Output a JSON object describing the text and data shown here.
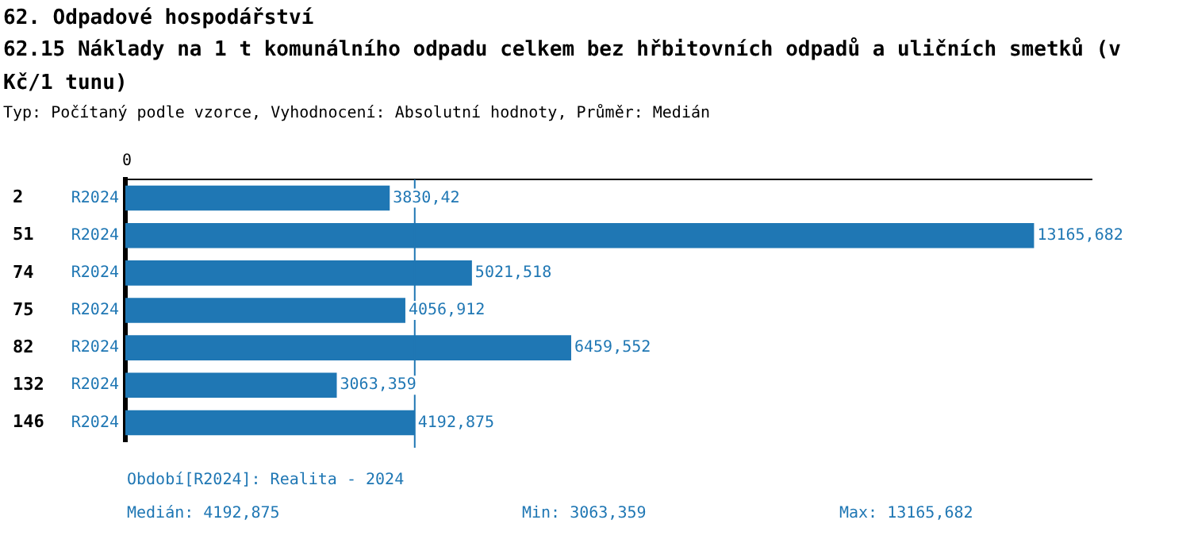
{
  "chart_data": {
    "type": "bar",
    "orientation": "horizontal",
    "title": "62. Odpadové hospodářství",
    "subtitle": "62.15 Náklady na 1 t komunálního odpadu celkem bez hřbitovních odpadů a uličních smetků (v Kč/1 tunu)",
    "annotations": [
      "Typ: Počítaný podle vzorce, Vyhodnocení: Absolutní hodnoty, Průměr: Medián",
      "0",
      "Období[R2024]: Realita - 2024",
      "Medián: 4192,875",
      "Min: 3063,359",
      "Max: 13165,682"
    ],
    "categories": [
      "2",
      "51",
      "74",
      "75",
      "82",
      "132",
      "146"
    ],
    "series": [
      {
        "name": "R2024",
        "color": "#1f77b4",
        "values": [
          3830.42,
          13165.682,
          5021.518,
          4056.912,
          6459.552,
          3063.359,
          4192.875
        ],
        "value_labels": [
          "3830,42",
          "13165,682",
          "5021,518",
          "4056,912",
          "6459,552",
          "3063,359",
          "4192,875"
        ]
      }
    ],
    "ref_lines": [
      {
        "axis": "x",
        "value": 4192.875,
        "color": "#1f77b4"
      }
    ],
    "grid": false,
    "legend": false
  }
}
